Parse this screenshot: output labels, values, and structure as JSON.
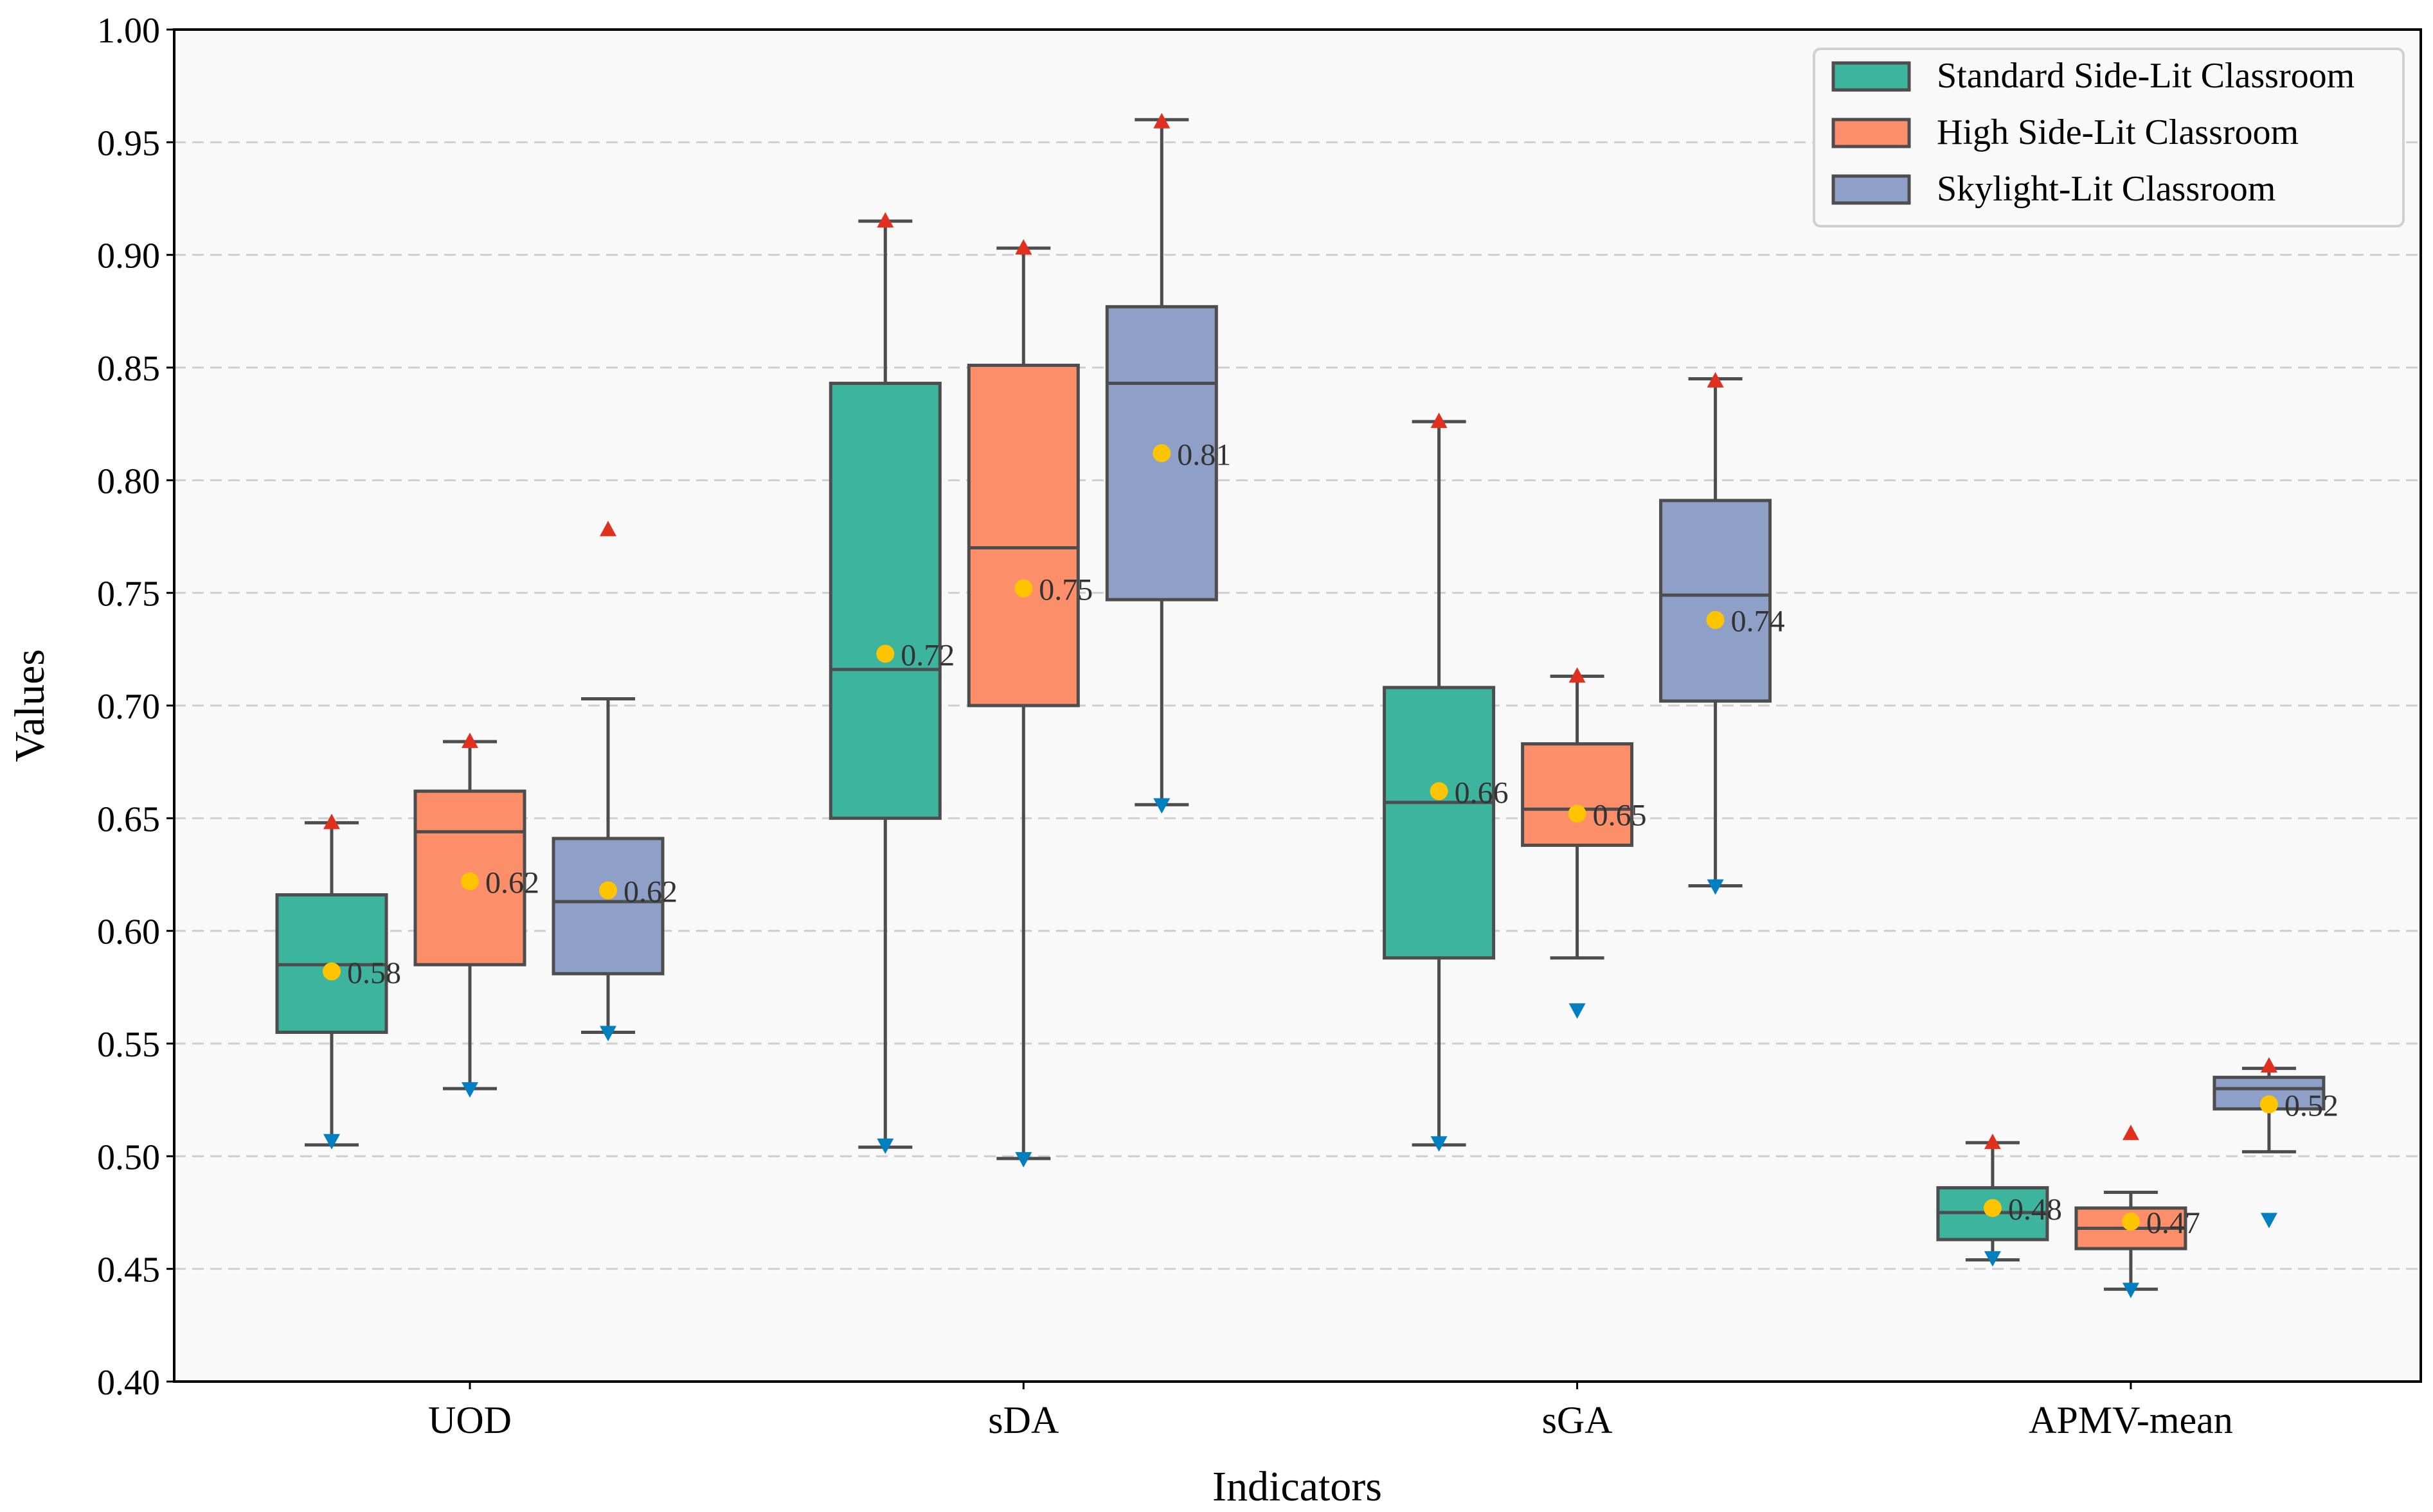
{
  "chart_data": {
    "type": "box",
    "title": "",
    "xlabel": "Indicators",
    "ylabel": "Values",
    "ylim": [
      0.4,
      1.0
    ],
    "yticks": [
      "0.40",
      "0.45",
      "0.50",
      "0.55",
      "0.60",
      "0.65",
      "0.70",
      "0.75",
      "0.80",
      "0.85",
      "0.90",
      "0.95",
      "1.00"
    ],
    "grid": "horizontal dashed",
    "legend_position": "top-right",
    "categories": [
      "UOD",
      "sDA",
      "sGA",
      "APMV-mean"
    ],
    "colors": {
      "Standard Side-Lit Classroom": "#3db59e",
      "High Side-Lit Classroom": "#fc8e6a",
      "Skylight-Lit Classroom": "#8ea0c8",
      "mean": "#ffc400",
      "max": "#e03020",
      "min": "#0080c0",
      "edge": "#4d4d4d",
      "background": "#f9f9f9"
    },
    "series": [
      {
        "name": "Standard Side-Lit Classroom",
        "boxes": [
          {
            "whislo": 0.505,
            "q1": 0.555,
            "med": 0.585,
            "q3": 0.616,
            "whishi": 0.648,
            "mean": 0.582,
            "mean_label": "0.58",
            "max": 0.648,
            "min": 0.507
          },
          {
            "whislo": 0.504,
            "q1": 0.65,
            "med": 0.716,
            "q3": 0.843,
            "whishi": 0.915,
            "mean": 0.723,
            "mean_label": "0.72",
            "max": 0.915,
            "min": 0.505
          },
          {
            "whislo": 0.505,
            "q1": 0.588,
            "med": 0.657,
            "q3": 0.708,
            "whishi": 0.826,
            "mean": 0.662,
            "mean_label": "0.66",
            "max": 0.826,
            "min": 0.506
          },
          {
            "whislo": 0.454,
            "q1": 0.463,
            "med": 0.475,
            "q3": 0.486,
            "whishi": 0.506,
            "mean": 0.477,
            "mean_label": "0.48",
            "max": 0.506,
            "min": 0.455
          }
        ]
      },
      {
        "name": "High Side-Lit Classroom",
        "boxes": [
          {
            "whislo": 0.53,
            "q1": 0.585,
            "med": 0.644,
            "q3": 0.662,
            "whishi": 0.684,
            "mean": 0.622,
            "mean_label": "0.62",
            "max": 0.684,
            "min": 0.53
          },
          {
            "whislo": 0.499,
            "q1": 0.7,
            "med": 0.77,
            "q3": 0.851,
            "whishi": 0.903,
            "mean": 0.752,
            "mean_label": "0.75",
            "max": 0.903,
            "min": 0.499
          },
          {
            "whislo": 0.588,
            "q1": 0.638,
            "med": 0.654,
            "q3": 0.683,
            "whishi": 0.713,
            "mean": 0.652,
            "mean_label": "0.65",
            "max": 0.713,
            "min": 0.565
          },
          {
            "whislo": 0.441,
            "q1": 0.459,
            "med": 0.468,
            "q3": 0.477,
            "whishi": 0.484,
            "mean": 0.471,
            "mean_label": "0.47",
            "max": 0.51,
            "min": 0.441
          }
        ]
      },
      {
        "name": "Skylight-Lit Classroom",
        "boxes": [
          {
            "whislo": 0.555,
            "q1": 0.581,
            "med": 0.613,
            "q3": 0.641,
            "whishi": 0.703,
            "mean": 0.618,
            "mean_label": "0.62",
            "max": 0.778,
            "min": 0.555
          },
          {
            "whislo": 0.656,
            "q1": 0.747,
            "med": 0.843,
            "q3": 0.877,
            "whishi": 0.96,
            "mean": 0.812,
            "mean_label": "0.81",
            "max": 0.959,
            "min": 0.656
          },
          {
            "whislo": 0.62,
            "q1": 0.702,
            "med": 0.749,
            "q3": 0.791,
            "whishi": 0.845,
            "mean": 0.738,
            "mean_label": "0.74",
            "max": 0.844,
            "min": 0.62
          },
          {
            "whislo": 0.502,
            "q1": 0.521,
            "med": 0.53,
            "q3": 0.535,
            "whishi": 0.539,
            "mean": 0.523,
            "mean_label": "0.52",
            "max": 0.54,
            "min": 0.472
          }
        ]
      }
    ]
  }
}
